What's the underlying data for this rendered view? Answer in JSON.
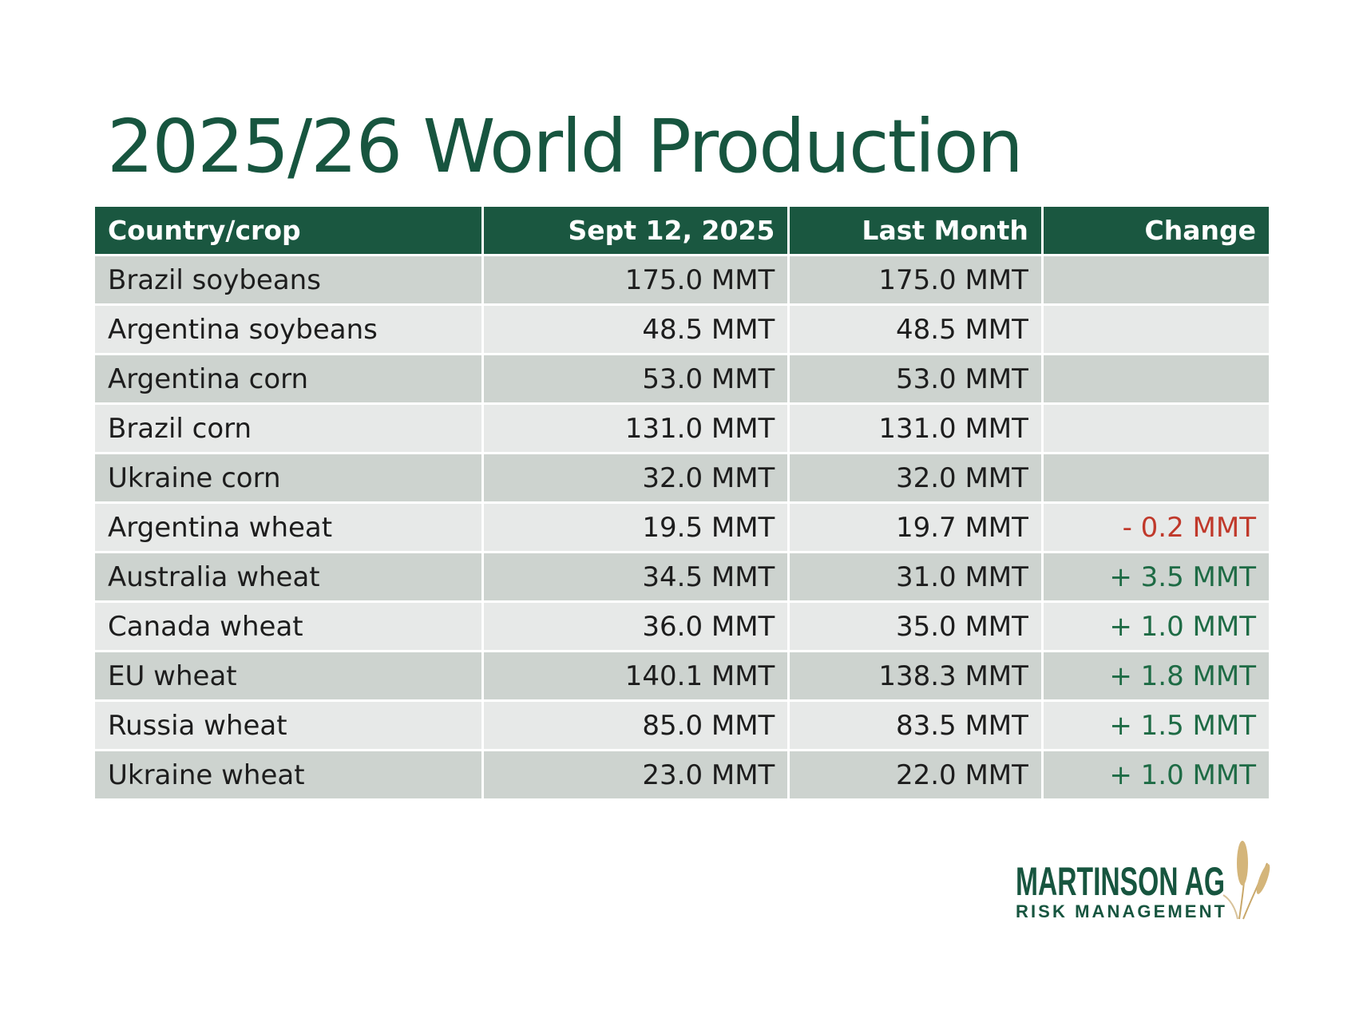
{
  "title": "2025/26 World Production",
  "table": {
    "headers": [
      "Country/crop",
      "Sept 12, 2025",
      "Last Month",
      "Change"
    ],
    "rows": [
      {
        "crop": "Brazil soybeans",
        "current": "175.0 MMT",
        "last": "175.0 MMT",
        "change": ""
      },
      {
        "crop": "Argentina soybeans",
        "current": "48.5 MMT",
        "last": "48.5 MMT",
        "change": ""
      },
      {
        "crop": "Argentina corn",
        "current": "53.0 MMT",
        "last": "53.0 MMT",
        "change": ""
      },
      {
        "crop": "Brazil corn",
        "current": "131.0 MMT",
        "last": "131.0 MMT",
        "change": ""
      },
      {
        "crop": "Ukraine corn",
        "current": "32.0 MMT",
        "last": "32.0 MMT",
        "change": ""
      },
      {
        "crop": "Argentina wheat",
        "current": "19.5 MMT",
        "last": "19.7 MMT",
        "change": "- 0.2 MMT"
      },
      {
        "crop": "Australia wheat",
        "current": "34.5 MMT",
        "last": "31.0 MMT",
        "change": "+ 3.5 MMT"
      },
      {
        "crop": "Canada wheat",
        "current": "36.0 MMT",
        "last": "35.0 MMT",
        "change": "+ 1.0 MMT"
      },
      {
        "crop": "EU wheat",
        "current": "140.1 MMT",
        "last": "138.3 MMT",
        "change": "+ 1.8 MMT"
      },
      {
        "crop": "Russia wheat",
        "current": "85.0 MMT",
        "last": "83.5 MMT",
        "change": "+ 1.5 MMT"
      },
      {
        "crop": "Ukraine wheat",
        "current": "23.0 MMT",
        "last": "22.0 MMT",
        "change": "+ 1.0 MMT"
      }
    ]
  },
  "logo": {
    "line1": "MARTINSON AG",
    "line2": "RISK MANAGEMENT"
  },
  "colors": {
    "header": "#1a5740",
    "title": "#17553f",
    "positive": "#1e6b45",
    "negative": "#c0392b",
    "row_dark": "#cdd3cf",
    "row_light": "#e7e9e8"
  }
}
